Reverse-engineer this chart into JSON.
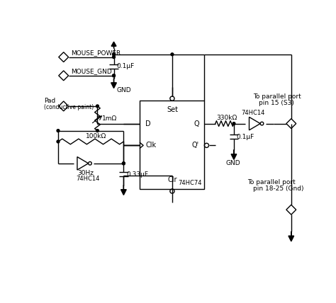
{
  "background_color": "#ffffff",
  "line_color": "#000000",
  "labels": {
    "mouse_power": "MOUSE_POWER",
    "mouse_gnd": "MOUSE_GND",
    "gnd1": "GND",
    "gnd2": "GND",
    "pad_line1": "Pad",
    "pad_line2": "(conductive paint)",
    "res1": "1mΩ",
    "res2": "100kΩ",
    "res3": "330kΩ",
    "cap1": "0.1μF",
    "cap2": "0.33μF",
    "cap3": "0.1μF",
    "freq": "30Hz",
    "ic1_bot": "74HC14",
    "ic2_ff": "74HC74",
    "ic3_right": "74HC14",
    "ff_set": "Set",
    "ff_d": "D",
    "ff_q": "Q",
    "ff_qbar": "Q'",
    "ff_clk": "Clk",
    "ff_clr": "Clr",
    "pp1_line1": "To parallel port",
    "pp1_line2": "pin 15 (S3)",
    "pp2_line1": "To parallel port",
    "pp2_line2": "pin 18-25 (Gnd)"
  }
}
